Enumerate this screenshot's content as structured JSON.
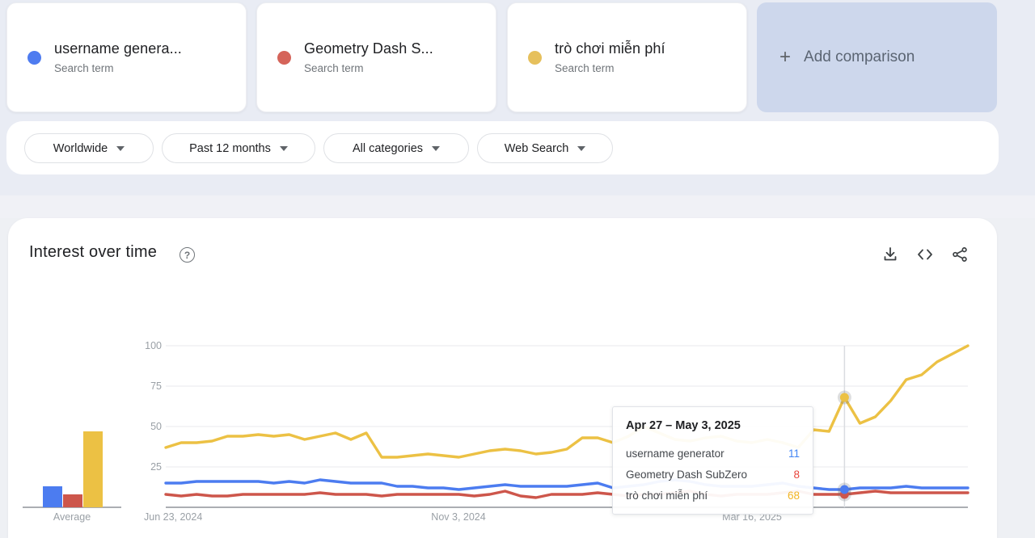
{
  "comparison_bar": {
    "terms": [
      {
        "title": "username genera...",
        "subtitle": "Search term",
        "color": "#4e7cf0"
      },
      {
        "title": "Geometry Dash S...",
        "subtitle": "Search term",
        "color": "#d5645a"
      },
      {
        "title": "trò chơi miễn phí",
        "subtitle": "Search term",
        "color": "#e6c05c"
      }
    ],
    "add_button": {
      "plus": "+",
      "label": "Add comparison",
      "bg": "#cdd7ec"
    }
  },
  "filter_bar": {
    "filters": [
      {
        "label": "Worldwide"
      },
      {
        "label": "Past 12 months"
      },
      {
        "label": "All categories"
      },
      {
        "label": "Web Search"
      }
    ]
  },
  "interest_panel": {
    "title": "Interest over time",
    "help_icon": "?"
  },
  "chart_data": {
    "type": "line",
    "title": "Interest over time",
    "ylim": [
      0,
      100
    ],
    "y_ticks": [
      100,
      75,
      50,
      25
    ],
    "x_tick_labels": [
      "Jun 23, 2024",
      "Nov 3, 2024",
      "Mar 16, 2025"
    ],
    "grid": true,
    "hover_index": 44,
    "hover_week": "Apr 27 – May 3, 2025",
    "series": [
      {
        "name": "username generator",
        "color": "#4c7cf0",
        "values": [
          15,
          15,
          16,
          16,
          16,
          16,
          16,
          15,
          16,
          15,
          17,
          16,
          15,
          15,
          15,
          13,
          13,
          12,
          12,
          11,
          12,
          13,
          14,
          13,
          13,
          13,
          13,
          14,
          15,
          12,
          13,
          14,
          16,
          17,
          16,
          14,
          13,
          13,
          13,
          14,
          15,
          13,
          12,
          11,
          11,
          12,
          12,
          12,
          13,
          12,
          12,
          12,
          12
        ]
      },
      {
        "name": "Geometry Dash SubZero",
        "color": "#cd564b",
        "values": [
          8,
          7,
          8,
          7,
          7,
          8,
          8,
          8,
          8,
          8,
          9,
          8,
          8,
          8,
          7,
          8,
          8,
          8,
          8,
          8,
          7,
          8,
          10,
          7,
          6,
          8,
          8,
          8,
          9,
          8,
          7,
          8,
          8,
          9,
          10,
          8,
          7,
          8,
          8,
          8,
          9,
          10,
          8,
          8,
          8,
          9,
          10,
          9,
          9,
          9,
          9,
          9,
          9
        ]
      },
      {
        "name": "trò chơi miễn phí",
        "color": "#ecc144",
        "values": [
          37,
          40,
          40,
          41,
          44,
          44,
          45,
          44,
          45,
          42,
          44,
          46,
          42,
          46,
          31,
          31,
          32,
          33,
          32,
          31,
          33,
          35,
          36,
          35,
          33,
          34,
          36,
          43,
          43,
          40,
          44,
          50,
          46,
          42,
          41,
          43,
          44,
          41,
          40,
          42,
          40,
          37,
          48,
          47,
          68,
          52,
          56,
          66,
          79,
          82,
          90,
          95,
          100
        ]
      }
    ],
    "average": {
      "label": "Average",
      "values": [
        13,
        8,
        47
      ]
    }
  },
  "tooltip": {
    "title": "Apr 27 – May 3, 2025",
    "rows": [
      {
        "label": "username generator",
        "value": "11",
        "color": "#4285f4"
      },
      {
        "label": "Geometry Dash SubZero",
        "value": "8",
        "color": "#e8453c"
      },
      {
        "label": "trò chơi miễn phí",
        "value": "68",
        "color": "#f2b424"
      }
    ]
  }
}
